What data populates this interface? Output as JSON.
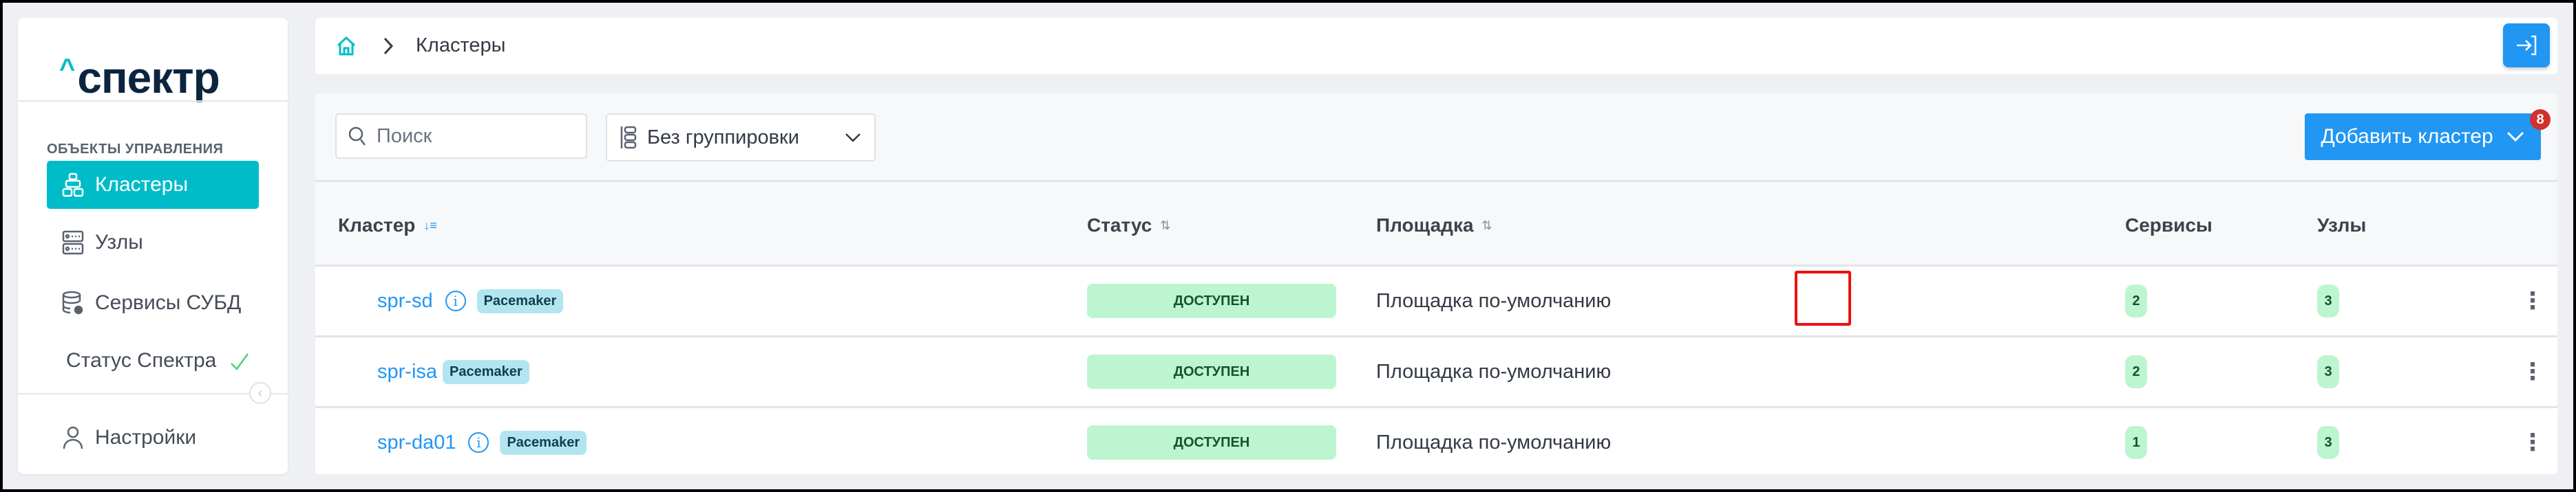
{
  "sidebar": {
    "logo": "спектр",
    "section_title": "ОБЪЕКТЫ УПРАВЛЕНИЯ",
    "items": [
      {
        "label": "Кластеры",
        "icon": "clusters-icon",
        "active": true
      },
      {
        "label": "Узлы",
        "icon": "servers-icon"
      },
      {
        "label": "Сервисы СУБД",
        "icon": "database-gear-icon"
      },
      {
        "label": "Статус Спектра",
        "icon": "check-icon",
        "status_color": "#4cd07d"
      }
    ],
    "settings_label": "Настройки"
  },
  "header": {
    "breadcrumb": [
      "home-icon",
      "Кластеры"
    ],
    "current": "Кластеры"
  },
  "toolbar": {
    "search_placeholder": "Поиск",
    "grouping_value": "Без группировки",
    "add_button_label": "Добавить кластер",
    "notification_count": "8"
  },
  "table": {
    "columns": [
      "Кластер",
      "Статус",
      "Площадка",
      "Сервисы",
      "Узлы"
    ],
    "rows": [
      {
        "name": "spr-sd",
        "info": true,
        "tag": "Pacemaker",
        "status": "ДОСТУПЕН",
        "site": "Площадка по-умолчанию",
        "services": "2",
        "nodes": "3"
      },
      {
        "name": "spr-isa",
        "info": false,
        "tag": "Pacemaker",
        "status": "ДОСТУПЕН",
        "site": "Площадка по-умолчанию",
        "services": "2",
        "nodes": "3"
      },
      {
        "name": "spr-da01",
        "info": true,
        "tag": "Pacemaker",
        "status": "ДОСТУПЕН",
        "site": "Площадка по-умолчанию",
        "services": "1",
        "nodes": "3"
      }
    ]
  },
  "colors": {
    "accent": "#00bcc8",
    "primary": "#2196f3",
    "status_ok_bg": "#bdf5d0",
    "tag_bg": "#b3e5f0",
    "highlight": "#ee1111"
  }
}
